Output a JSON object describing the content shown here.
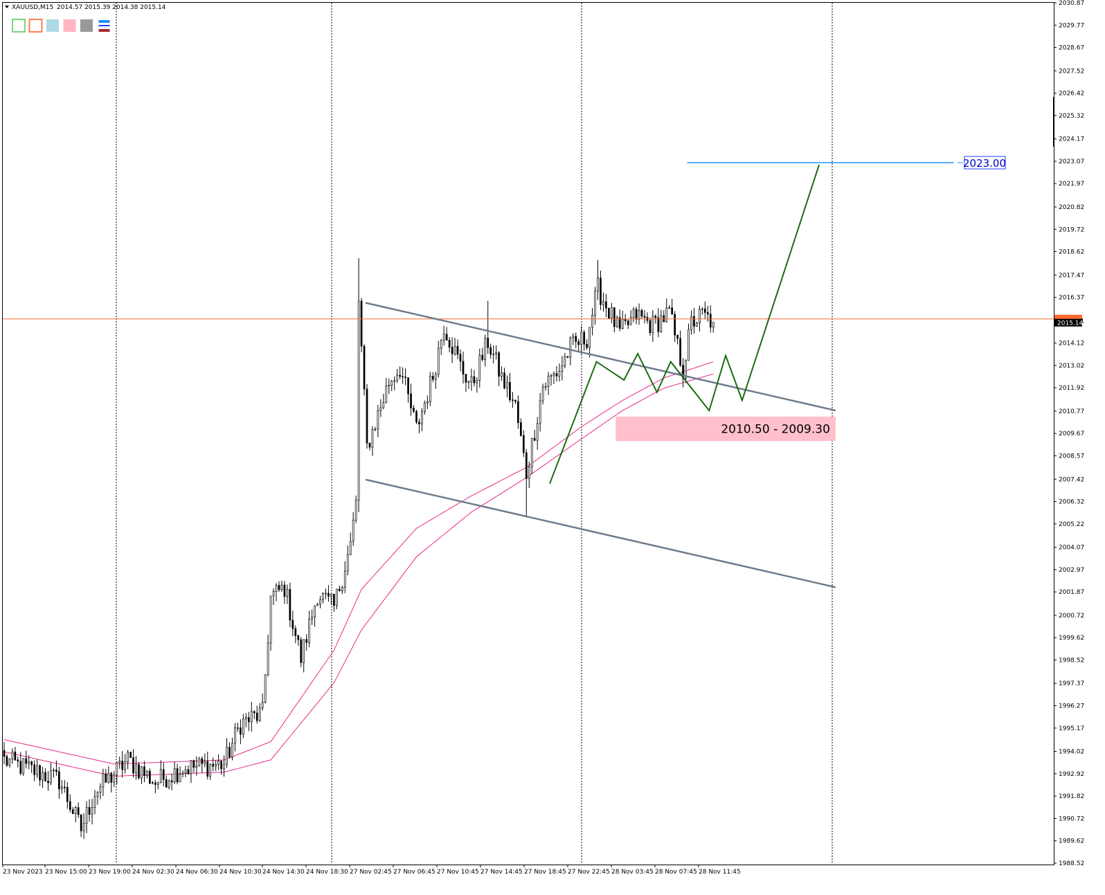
{
  "header": {
    "symbol": "XAUUSD,M15",
    "ohlc": "2014.57 2015.39 2014.38 2015.14"
  },
  "toolbar": {
    "swatches": [
      {
        "name": "green-rect-swatch",
        "color": "#7ad67a",
        "style": "outline"
      },
      {
        "name": "orange-rect-swatch",
        "color": "#ff7f50",
        "style": "outline"
      },
      {
        "name": "lightblue-swatch",
        "color": "#add8e6",
        "style": "fill"
      },
      {
        "name": "pink-swatch",
        "color": "#ffb6c1",
        "style": "fill"
      },
      {
        "name": "gray-swatch",
        "color": "#999999",
        "style": "fill"
      },
      {
        "name": "lines-swatch",
        "color": "#1e90ff",
        "style": "lines"
      }
    ]
  },
  "chart_data": {
    "type": "candlestick",
    "symbol": "XAUUSD",
    "timeframe": "M15",
    "current_price": "2015.14",
    "bid_line_price": 2015.31,
    "y_ticks": [
      "2030.87",
      "2029.77",
      "2028.67",
      "2027.52",
      "2026.42",
      "2025.32",
      "2024.17",
      "2023.07",
      "2021.97",
      "2020.82",
      "2019.72",
      "2018.62",
      "2017.47",
      "2016.37",
      "2015.21",
      "2014.12",
      "2013.02",
      "2011.92",
      "2010.77",
      "2009.67",
      "2008.57",
      "2007.42",
      "2006.32",
      "2005.22",
      "2004.07",
      "2002.97",
      "2001.87",
      "2000.72",
      "1999.62",
      "1998.52",
      "1997.37",
      "1996.27",
      "1995.17",
      "1994.02",
      "1992.92",
      "1991.82",
      "1990.72",
      "1989.62",
      "1988.52"
    ],
    "ylim": [
      1988.52,
      2030.87
    ],
    "x_ticks": [
      "23 Nov 2023",
      "23 Nov 15:00",
      "23 Nov 19:00",
      "24 Nov 02:30",
      "24 Nov 06:30",
      "24 Nov 10:30",
      "24 Nov 14:30",
      "24 Nov 18:30",
      "27 Nov 02:45",
      "27 Nov 06:45",
      "27 Nov 10:45",
      "27 Nov 14:45",
      "27 Nov 18:45",
      "27 Nov 22:45",
      "28 Nov 03:45",
      "28 Nov 07:45",
      "28 Nov 11:45"
    ],
    "period_separators": [
      "23 Nov 19:00",
      "24 Nov 18:30",
      "27 Nov 22:45",
      "after 28 Nov 11:45"
    ],
    "price_anchors": [
      {
        "bar": 0,
        "price": 1993.6
      },
      {
        "bar": 20,
        "price": 1992.6
      },
      {
        "bar": 28,
        "price": 1990.2
      },
      {
        "bar": 33,
        "price": 1992.0
      },
      {
        "bar": 45,
        "price": 1993.6
      },
      {
        "bar": 55,
        "price": 1992.5
      },
      {
        "bar": 65,
        "price": 1993.2
      },
      {
        "bar": 80,
        "price": 1993.4
      },
      {
        "bar": 86,
        "price": 1995.4
      },
      {
        "bar": 94,
        "price": 1995.9
      },
      {
        "bar": 97,
        "price": 2001.6
      },
      {
        "bar": 102,
        "price": 2002.1
      },
      {
        "bar": 108,
        "price": 1998.6
      },
      {
        "bar": 114,
        "price": 2001.8
      },
      {
        "bar": 120,
        "price": 2001.1
      },
      {
        "bar": 126,
        "price": 2004.2
      },
      {
        "bar": 128,
        "price": 2006.2
      },
      {
        "bar": 129,
        "price": 2016.2
      },
      {
        "bar": 132,
        "price": 2009.0
      },
      {
        "bar": 140,
        "price": 2012.2
      },
      {
        "bar": 144,
        "price": 2012.9
      },
      {
        "bar": 150,
        "price": 2009.9
      },
      {
        "bar": 156,
        "price": 2012.5
      },
      {
        "bar": 160,
        "price": 2015.0
      },
      {
        "bar": 166,
        "price": 2013.0
      },
      {
        "bar": 170,
        "price": 2012.0
      },
      {
        "bar": 176,
        "price": 2014.2
      },
      {
        "bar": 181,
        "price": 2012.4
      },
      {
        "bar": 186,
        "price": 2011.0
      },
      {
        "bar": 190,
        "price": 2007.7
      },
      {
        "bar": 196,
        "price": 2012.0
      },
      {
        "bar": 202,
        "price": 2012.8
      },
      {
        "bar": 206,
        "price": 2013.9
      },
      {
        "bar": 212,
        "price": 2014.4
      },
      {
        "bar": 216,
        "price": 2016.8
      },
      {
        "bar": 224,
        "price": 2014.6
      },
      {
        "bar": 230,
        "price": 2015.5
      },
      {
        "bar": 236,
        "price": 2015.0
      },
      {
        "bar": 242,
        "price": 2015.6
      },
      {
        "bar": 247,
        "price": 2012.8
      },
      {
        "bar": 250,
        "price": 2015.1
      },
      {
        "bar": 254,
        "price": 2015.5
      },
      {
        "bar": 258,
        "price": 2015.14
      }
    ],
    "moving_averages": [
      {
        "color": "#e8288a",
        "anchors": [
          [
            0,
            1994.6
          ],
          [
            40,
            1993.4
          ],
          [
            80,
            1993.6
          ],
          [
            97,
            1994.5
          ],
          [
            120,
            1999.0
          ],
          [
            130,
            2002.0
          ],
          [
            150,
            2005.0
          ],
          [
            170,
            2006.6
          ],
          [
            190,
            2008.0
          ],
          [
            210,
            2010.0
          ],
          [
            225,
            2011.3
          ],
          [
            240,
            2012.4
          ],
          [
            258,
            2013.2
          ]
        ]
      },
      {
        "color": "#e8288a",
        "anchors": [
          [
            0,
            1994.0
          ],
          [
            40,
            1992.8
          ],
          [
            80,
            1993.0
          ],
          [
            97,
            1993.6
          ],
          [
            120,
            1997.4
          ],
          [
            130,
            2000.0
          ],
          [
            150,
            2003.6
          ],
          [
            170,
            2005.8
          ],
          [
            190,
            2007.5
          ],
          [
            210,
            2009.4
          ],
          [
            225,
            2010.8
          ],
          [
            240,
            2011.9
          ],
          [
            258,
            2012.6
          ]
        ]
      }
    ],
    "drawings": {
      "channel_upper": {
        "from": [
          132,
          2016.1
        ],
        "to": [
          303,
          2010.8
        ]
      },
      "channel_lower": {
        "from": [
          132,
          2007.4
        ],
        "to": [
          303,
          2002.1
        ]
      },
      "projection_path": [
        [
          199,
          2007.2
        ],
        [
          216,
          2013.2
        ],
        [
          226,
          2012.3
        ],
        [
          231,
          2013.6
        ],
        [
          238,
          2011.7
        ],
        [
          243,
          2013.2
        ],
        [
          257,
          2010.8
        ],
        [
          263,
          2013.5
        ],
        [
          269,
          2011.3
        ],
        [
          297,
          2022.9
        ]
      ],
      "target_line": {
        "price": 2023.0,
        "from_bar": 249,
        "to_bar": 346,
        "label": "2023.00"
      },
      "support_zone": {
        "top": 2010.5,
        "bottom": 2009.3,
        "from_bar": 223,
        "to_bar": 303,
        "label": "2010.50 - 2009.30"
      }
    }
  }
}
